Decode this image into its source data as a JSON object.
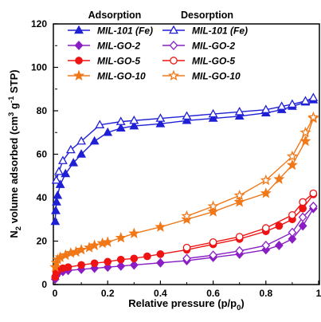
{
  "chart_data": {
    "type": "line",
    "xlabel": "Relative pressure (p/p₀)",
    "xlabel_parts": [
      "Relative pressure (p/p",
      "0",
      ")"
    ],
    "ylabel": "N₂ volume adsorbed (cm³ g⁻¹ STP)",
    "ylabel_parts": [
      "N",
      "2",
      " volume adsorbed (cm",
      "3",
      " g",
      "-1",
      " STP)"
    ],
    "xlim": [
      0,
      1
    ],
    "ylim": [
      0,
      120
    ],
    "x_ticks": [
      0,
      0.2,
      0.4,
      0.6,
      0.8,
      1
    ],
    "x_tick_labels": [
      "0",
      "0.2",
      "0.4",
      "0.6",
      "0.8",
      "1"
    ],
    "y_ticks": [
      0,
      20,
      40,
      60,
      80,
      100,
      120
    ],
    "y_tick_labels": [
      "0",
      "20",
      "40",
      "60",
      "80",
      "100",
      "120"
    ],
    "grid": false,
    "legend": {
      "placement": "top",
      "headers": [
        "Adsorption",
        "Desorption"
      ],
      "entries": [
        "MIL-101 (Fe)",
        "MIL-GO-2",
        "MIL-GO-5",
        "MIL-GO-10"
      ]
    },
    "series": [
      {
        "name": "MIL-101 (Fe)",
        "branch": "Adsorption",
        "color": "#1f1fd6",
        "marker": "triangle",
        "filled": true,
        "x": [
          0.001,
          0.003,
          0.006,
          0.01,
          0.02,
          0.04,
          0.07,
          0.1,
          0.15,
          0.2,
          0.25,
          0.3,
          0.4,
          0.5,
          0.6,
          0.7,
          0.8,
          0.86,
          0.9,
          0.95,
          0.98
        ],
        "y": [
          29,
          34,
          38,
          41,
          46,
          51,
          56,
          60,
          66,
          70,
          72,
          73,
          74,
          75.5,
          76.5,
          77.5,
          79,
          80.5,
          82,
          84,
          85
        ]
      },
      {
        "name": "MIL-101 (Fe)",
        "branch": "Desorption",
        "color": "#1f1fd6",
        "marker": "triangle",
        "filled": false,
        "x": [
          0.98,
          0.95,
          0.9,
          0.86,
          0.8,
          0.7,
          0.6,
          0.5,
          0.4,
          0.3,
          0.25,
          0.17,
          0.1,
          0.06,
          0.03,
          0.015,
          0.005
        ],
        "y": [
          86,
          84.5,
          83,
          82,
          80.5,
          79.5,
          78.5,
          77.5,
          76.5,
          75.5,
          75,
          73.5,
          66,
          62,
          57,
          52,
          48
        ]
      },
      {
        "name": "MIL-GO-2",
        "branch": "Adsorption",
        "color": "#8a1ec4",
        "marker": "diamond",
        "filled": true,
        "x": [
          0.001,
          0.005,
          0.01,
          0.03,
          0.05,
          0.1,
          0.15,
          0.2,
          0.25,
          0.3,
          0.4,
          0.5,
          0.6,
          0.7,
          0.8,
          0.85,
          0.9,
          0.94,
          0.98
        ],
        "y": [
          2.5,
          4,
          5,
          6,
          6.5,
          7,
          7.5,
          8,
          8.5,
          9,
          10,
          11,
          12.5,
          14,
          16,
          18,
          21,
          27,
          35
        ]
      },
      {
        "name": "MIL-GO-2",
        "branch": "Desorption",
        "color": "#8a1ec4",
        "marker": "diamond",
        "filled": false,
        "x": [
          0.98,
          0.94,
          0.9,
          0.8,
          0.7,
          0.6,
          0.5
        ],
        "y": [
          36,
          31,
          24,
          18,
          15.5,
          13.5,
          12
        ]
      },
      {
        "name": "MIL-GO-5",
        "branch": "Adsorption",
        "color": "#ee1414",
        "marker": "circle",
        "filled": true,
        "x": [
          0.001,
          0.005,
          0.01,
          0.03,
          0.05,
          0.1,
          0.15,
          0.2,
          0.25,
          0.3,
          0.35,
          0.4,
          0.5,
          0.6,
          0.7,
          0.8,
          0.85,
          0.9,
          0.94,
          0.98
        ],
        "y": [
          3.5,
          5.5,
          6.5,
          7.5,
          8,
          9,
          9.8,
          10.5,
          11.5,
          12,
          13,
          14,
          16,
          18.5,
          21,
          24.5,
          27,
          30,
          35,
          41.5
        ]
      },
      {
        "name": "MIL-GO-5",
        "branch": "Desorption",
        "color": "#ee1414",
        "marker": "circle",
        "filled": false,
        "x": [
          0.98,
          0.94,
          0.9,
          0.8,
          0.7,
          0.6,
          0.5
        ],
        "y": [
          42,
          38,
          32,
          26,
          22,
          19.5,
          17
        ]
      },
      {
        "name": "MIL-GO-10",
        "branch": "Adsorption",
        "color": "#f07818",
        "marker": "star",
        "filled": true,
        "x": [
          0.001,
          0.005,
          0.01,
          0.02,
          0.04,
          0.06,
          0.08,
          0.1,
          0.13,
          0.15,
          0.18,
          0.2,
          0.25,
          0.3,
          0.4,
          0.5,
          0.6,
          0.7,
          0.8,
          0.85,
          0.9,
          0.95,
          0.98
        ],
        "y": [
          8,
          10,
          11.5,
          12.5,
          13.5,
          14.5,
          15,
          16,
          17,
          18,
          19,
          19.5,
          21.5,
          23.5,
          26.5,
          30,
          33.5,
          38,
          42,
          48.5,
          55,
          66,
          76.5
        ]
      },
      {
        "name": "MIL-GO-10",
        "branch": "Desorption",
        "color": "#f07818",
        "marker": "star",
        "filled": false,
        "x": [
          0.98,
          0.95,
          0.9,
          0.8,
          0.7,
          0.6,
          0.5
        ],
        "y": [
          77,
          70,
          59,
          48,
          41,
          36,
          31.5
        ]
      }
    ]
  }
}
